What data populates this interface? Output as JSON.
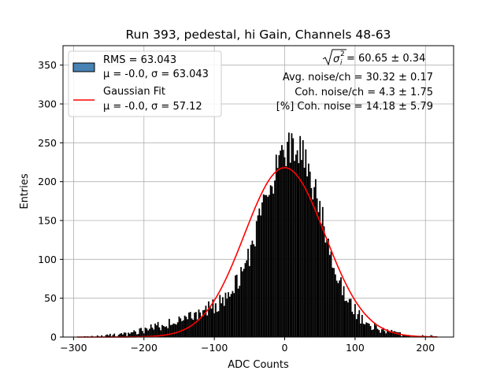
{
  "chart_data": {
    "type": "bar",
    "title": "Run 393, pedestal, hi Gain, Channels 48-63",
    "xlabel": "ADC Counts",
    "ylabel": "Entries",
    "xlim": [
      -315,
      240
    ],
    "ylim": [
      0,
      375
    ],
    "xticks": [
      -300,
      -200,
      -100,
      0,
      100,
      200
    ],
    "yticks": [
      0,
      50,
      100,
      150,
      200,
      250,
      300,
      350
    ],
    "grid": true,
    "legend_placement": "top-left",
    "histogram": {
      "name": "RMS = 63.043",
      "name_line2": "μ = -0.0, σ = 63.043",
      "color": "#4682b4",
      "fill": "#000000",
      "bin_range": [
        -295,
        217
      ],
      "bin_width": 2,
      "peak_x": 14,
      "peak_value": 265
    },
    "fit": {
      "name": "Gaussian Fit",
      "name_line2": "μ = -0.0, σ = 57.12",
      "color": "#ff0000",
      "mu": 0.0,
      "sigma": 57.12,
      "amplitude": 218,
      "x_range": [
        -295,
        217
      ]
    },
    "annotations": {
      "sigma_value": " = 60.65 ± 0.34",
      "avg_noise": "Avg. noise/ch = 30.32 ± 0.17",
      "coh_noise": "Coh. noise/ch = 4.3 ± 1.75",
      "pct_coh_noise": "[%] Coh. noise = 14.18 ± 5.79"
    }
  }
}
